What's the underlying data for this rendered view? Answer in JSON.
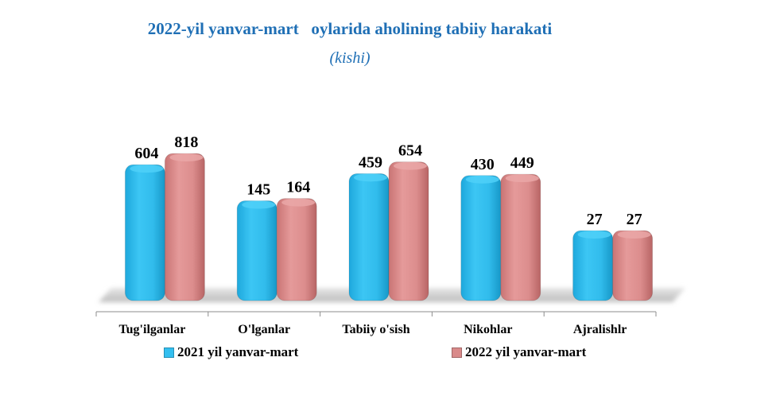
{
  "chart_data": {
    "type": "bar",
    "title": "2022-yil yanvar-mart   oylarida aholining tabiiy harakati",
    "subtitle": "(kishi)",
    "categories": [
      "Tug'ilganlar",
      "O'lganlar",
      "Tabiiy o'sish",
      "Nikohlar",
      "Ajralishlr"
    ],
    "series": [
      {
        "name": "2021 yil yanvar-mart",
        "values": [
          604,
          145,
          459,
          430,
          27
        ],
        "color": "#33bff0"
      },
      {
        "name": "2022 yil yanvar-mart",
        "values": [
          818,
          164,
          654,
          449,
          27
        ],
        "color": "#d98a8a"
      }
    ],
    "grid": false,
    "legend": "bottom"
  }
}
